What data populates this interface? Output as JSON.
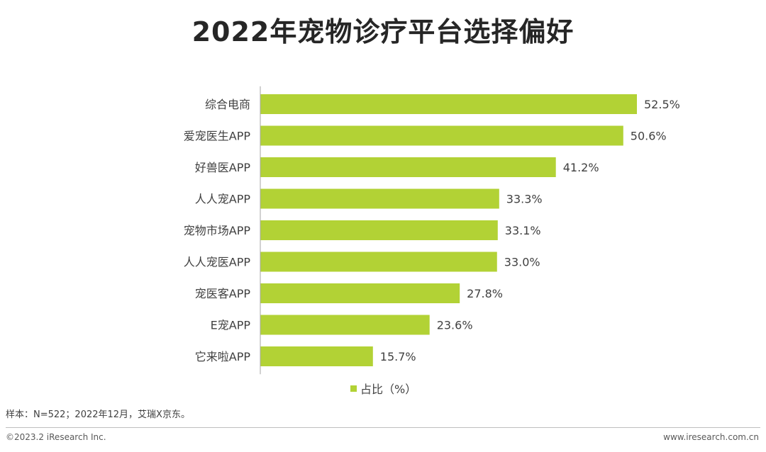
{
  "title": "2022年宠物诊疗平台选择偏好",
  "chart_data": {
    "type": "bar",
    "orientation": "horizontal",
    "categories": [
      "综合电商",
      "爱宠医生APP",
      "好兽医APP",
      "人人宠APP",
      "宠物市场APP",
      "人人宠医APP",
      "宠医客APP",
      "E宠APP",
      "它来啦APP"
    ],
    "series": [
      {
        "name": "占比（%）",
        "values": [
          52.5,
          50.6,
          41.2,
          33.3,
          33.1,
          33.0,
          27.8,
          23.6,
          15.7
        ]
      }
    ],
    "value_labels": [
      "52.5%",
      "50.6%",
      "41.2%",
      "33.3%",
      "33.1%",
      "33.0%",
      "27.8%",
      "23.6%",
      "15.7%"
    ],
    "xlim": [
      0,
      55
    ],
    "grid": false,
    "legend_position": "bottom",
    "bar_color": "#b2d235"
  },
  "legend": {
    "label": "占比（%）",
    "color": "#b2d235"
  },
  "footnote": "样本：N=522；2022年12月，艾瑞X京东。",
  "copyright": "©2023.2 iResearch Inc.",
  "website": "www.iresearch.com.cn"
}
